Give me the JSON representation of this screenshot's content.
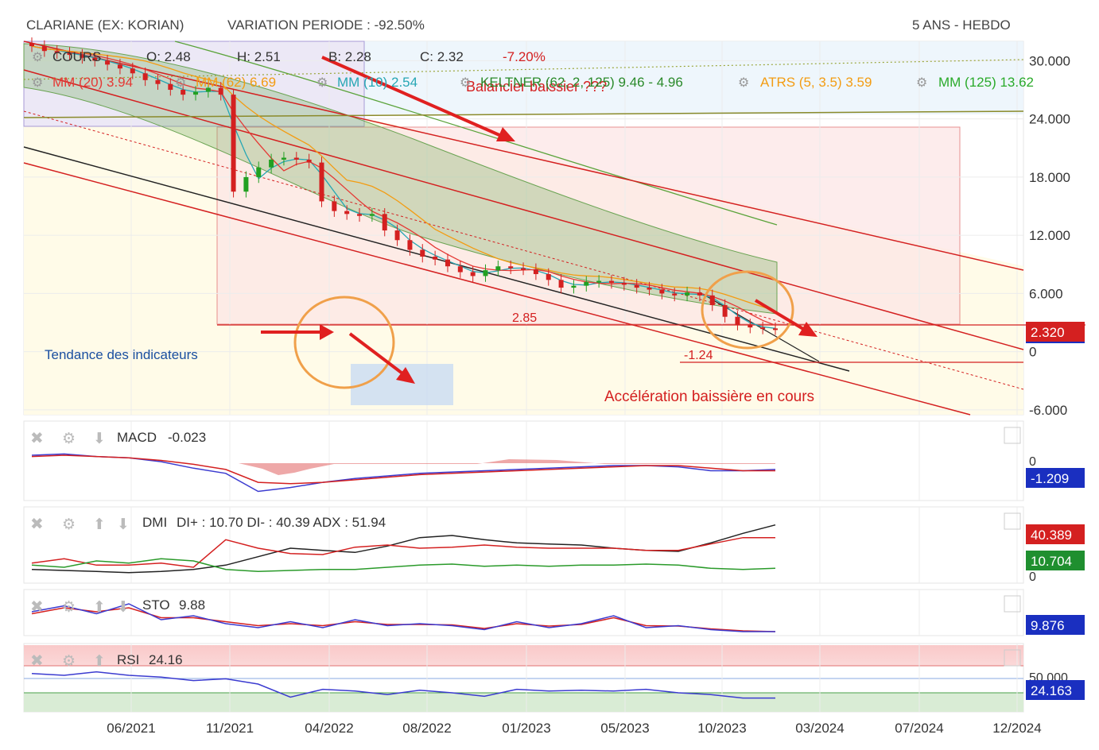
{
  "header": {
    "title": "CLARIANE (EX: KORIAN)",
    "variation": "VARIATION PERIODE : -92.50%",
    "period": "5 ANS - HEBDO"
  },
  "legend": {
    "cours_label": "COURS",
    "open": "O: 2.48",
    "high": "H: 2.51",
    "low": "B: 2.28",
    "close": "C: 2.32",
    "change": "-7.20%",
    "mm20": "MM (20) 3.94",
    "mm62": "MM (62) 6.69",
    "mm10": "MM (10) 2.54",
    "keltner": "KELTNER (62, 2, 125) 9.46 - 4.96",
    "atrs": "ATRS (5, 3.5) 3.59",
    "mm125": "MM (125) 13.62"
  },
  "annotations": {
    "balancier": "Balancier baissier ???",
    "tendance": "Tendance des indicateurs",
    "acceleration": "Accélération baissière en cours",
    "level_285": "2.85",
    "level_124": "-1.24"
  },
  "colors": {
    "up_candle": "#22a022",
    "down_candle": "#d42020",
    "mm20": "#e53935",
    "mm62": "#f39c12",
    "mm10": "#26a6b4",
    "keltner": "#5aa33a",
    "channel": "#d42020",
    "macd_line": "#3b3bd0",
    "signal_line": "#d42020",
    "adx": "#222222",
    "di_plus": "#2a9a2a",
    "di_minus": "#d42020",
    "price_badge": "#d42020",
    "badge_blue": "#1a2fc0",
    "badge_green": "#1f8f2f"
  },
  "chart_data": [
    {
      "type": "candlestick",
      "title": "CLARIANE (EX: KORIAN)",
      "y_ticks": [
        "30.000",
        "24.000",
        "18.000",
        "12.000",
        "6.000",
        "0",
        "-6.000"
      ],
      "x_ticks": [
        "06/2021",
        "11/2021",
        "04/2022",
        "08/2022",
        "01/2023",
        "05/2023",
        "10/2023",
        "03/2024",
        "07/2024",
        "12/2024"
      ],
      "ylim": [
        -6.5,
        32
      ],
      "last_price_label": "2.320",
      "last_price": 2.32,
      "close_series": [
        31.5,
        31.0,
        30.8,
        30.6,
        30.3,
        30.0,
        29.6,
        29.2,
        28.7,
        28.0,
        27.6,
        27.0,
        26.5,
        26.8,
        27.2,
        26.5,
        16.5,
        18.0,
        19.0,
        19.8,
        20.0,
        19.8,
        19.5,
        15.5,
        14.5,
        14.2,
        14.0,
        14.2,
        12.5,
        11.5,
        10.5,
        9.8,
        9.5,
        8.8,
        8.2,
        7.8,
        8.4,
        8.8,
        8.6,
        8.5,
        8.0,
        7.4,
        6.6,
        6.8,
        7.2,
        7.3,
        7.1,
        6.9,
        6.6,
        6.4,
        6.0,
        5.8,
        6.1,
        5.8,
        4.8,
        3.6,
        2.8,
        2.5,
        2.4,
        2.32
      ]
    },
    {
      "type": "line",
      "title": "MACD",
      "value_label": "-0.023",
      "badge_label": "-1.209",
      "y_ticks": [
        "0"
      ],
      "series": [
        {
          "name": "MACD",
          "values": [
            0.2,
            0.3,
            0.1,
            0.0,
            -0.3,
            -0.8,
            -1.2,
            -2.6,
            -2.3,
            -1.9,
            -1.6,
            -1.4,
            -1.2,
            -1.1,
            -1.0,
            -0.9,
            -0.8,
            -0.7,
            -0.6,
            -0.6,
            -0.7,
            -1.0,
            -1.0,
            -0.9
          ]
        },
        {
          "name": "Signal",
          "values": [
            0.1,
            0.2,
            0.1,
            0.0,
            -0.2,
            -0.5,
            -0.9,
            -1.9,
            -2.0,
            -1.9,
            -1.7,
            -1.5,
            -1.3,
            -1.2,
            -1.1,
            -1.0,
            -0.9,
            -0.8,
            -0.7,
            -0.6,
            -0.6,
            -0.8,
            -1.0,
            -1.0
          ]
        }
      ]
    },
    {
      "type": "line",
      "title": "DMI",
      "value_label": "DI+ : 10.70 DI- : 40.39 ADX : 51.94",
      "badge_di_minus": "40.389",
      "badge_di_plus": "10.704",
      "y_ticks": [
        "0"
      ],
      "series": [
        {
          "name": "ADX",
          "values": [
            10,
            9,
            8,
            7,
            8,
            10,
            14,
            22,
            30,
            28,
            26,
            32,
            40,
            42,
            38,
            35,
            34,
            33,
            30,
            28,
            27,
            35,
            44,
            52
          ]
        },
        {
          "name": "DI-",
          "values": [
            16,
            20,
            14,
            14,
            16,
            12,
            38,
            30,
            25,
            24,
            31,
            33,
            30,
            31,
            33,
            31,
            30,
            30,
            30,
            28,
            28,
            34,
            40,
            40
          ]
        },
        {
          "name": "DI+",
          "values": [
            14,
            12,
            18,
            16,
            20,
            18,
            10,
            8,
            9,
            10,
            10,
            12,
            14,
            15,
            13,
            14,
            13,
            14,
            14,
            15,
            14,
            11,
            10,
            11
          ]
        }
      ]
    },
    {
      "type": "line",
      "title": "STO",
      "value_label": "9.88",
      "badge_label": "9.876",
      "series": [
        {
          "name": "%K",
          "values": [
            60,
            75,
            55,
            80,
            40,
            50,
            30,
            20,
            35,
            20,
            40,
            25,
            30,
            25,
            15,
            35,
            20,
            30,
            50,
            20,
            25,
            15,
            10,
            10
          ]
        },
        {
          "name": "%D",
          "values": [
            55,
            70,
            60,
            70,
            45,
            45,
            35,
            25,
            30,
            25,
            35,
            28,
            28,
            27,
            18,
            30,
            24,
            28,
            45,
            25,
            24,
            17,
            12,
            10
          ]
        }
      ]
    },
    {
      "type": "line",
      "title": "RSI",
      "value_label": "24.16",
      "badge_label": "24.163",
      "y_ticks": [
        "50.000"
      ],
      "series": [
        {
          "name": "RSI",
          "values": [
            52,
            50,
            54,
            50,
            48,
            44,
            46,
            40,
            25,
            34,
            32,
            28,
            33,
            30,
            26,
            34,
            32,
            33,
            32,
            34,
            30,
            28,
            24,
            24
          ]
        }
      ]
    }
  ]
}
